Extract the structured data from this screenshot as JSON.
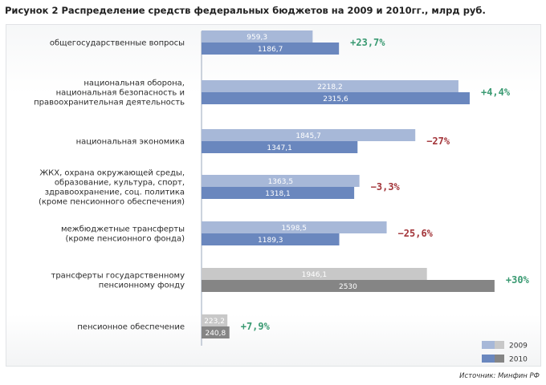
{
  "title": "Рисунок 2 Распределение средств федеральных бюджетов на 2009 и 2010гг., млрд руб.",
  "source": "Источник: Минфин РФ",
  "colors": {
    "blue_2009": "#a7b8d8",
    "blue_2010": "#6a87be",
    "gray_2009": "#c8c8c8",
    "gray_2010": "#858585",
    "positive": "#3a9a72",
    "negative": "#a3353a"
  },
  "chart_data": {
    "type": "bar",
    "orientation": "horizontal",
    "title": "Распределение средств федеральных бюджетов на 2009 и 2010гг., млрд руб.",
    "xlim": [
      0,
      2600
    ],
    "categories": [
      "общегосударственные вопросы",
      "национальная оборона, национальная безопасность и правоохранительная деятельность",
      "национальная экономика",
      "ЖКХ, охрана окружающей среды, образование, культура, спорт, здравоохранение, соц. политика (кроме пенсионного обеспечения)",
      "межбюджетные трансферты (кроме пенсионного фонда)",
      "трансферты государственному пенсионному фонду",
      "пенсионное обеспечение"
    ],
    "category_lines": [
      [
        "общегосударственные вопросы"
      ],
      [
        "национальная оборона,",
        "национальная безопасность и",
        "правоохранительная деятельность"
      ],
      [
        "национальная экономика"
      ],
      [
        "ЖКХ, охрана окружающей среды,",
        "образование, культура, спорт,",
        "здравоохранение, соц. политика",
        "(кроме пенсионного обеспечения)"
      ],
      [
        "межбюджетные трансферты",
        "(кроме пенсионного фонда)"
      ],
      [
        "трансферты государственному",
        "пенсионному фонду"
      ],
      [
        "пенсионное обеспечение"
      ]
    ],
    "series": [
      {
        "name": "2009",
        "values": [
          959.3,
          2218.2,
          1845.7,
          1363.5,
          1598.5,
          1946.1,
          223.2
        ],
        "labels": [
          "959,3",
          "2218,2",
          "1845,7",
          "1363,5",
          "1598,5",
          "1946,1",
          "223,2"
        ]
      },
      {
        "name": "2010",
        "values": [
          1186.7,
          2315.6,
          1347.1,
          1318.1,
          1189.3,
          2530,
          240.8
        ],
        "labels": [
          "1186,7",
          "2315,6",
          "1347,1",
          "1318,1",
          "1189,3",
          "2530",
          "240,8"
        ]
      }
    ],
    "changes": [
      "+23,7%",
      "+4,4%",
      "−27%",
      "−3,3%",
      "−25,6%",
      "+30%",
      "+7,9%"
    ],
    "change_signs": [
      1,
      1,
      -1,
      -1,
      -1,
      1,
      1
    ],
    "gray_categories": [
      5,
      6
    ],
    "legend": [
      "2009",
      "2010"
    ],
    "legend_position": "bottom-right"
  }
}
